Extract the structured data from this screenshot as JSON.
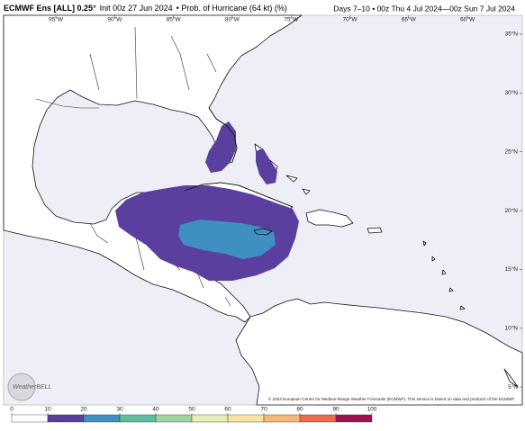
{
  "header": {
    "title": "ECMWF Ens [ALL] 0.25°",
    "init": "Init 00z 27 Jun 2024",
    "product": "• Prob. of Hurricane (64 kt) (%)",
    "valid": "Days 7–10 • 00z Thu 4 Jul 2024—00z Sun 7 Jul 2024"
  },
  "map": {
    "lon_labels": [
      {
        "value": -95,
        "label": "95°W"
      },
      {
        "value": -90,
        "label": "90°W"
      },
      {
        "value": -85,
        "label": "85°W"
      },
      {
        "value": -80,
        "label": "80°W"
      },
      {
        "value": -75,
        "label": "75°W"
      },
      {
        "value": -70,
        "label": "70°W"
      },
      {
        "value": -65,
        "label": "65°W"
      },
      {
        "value": -60,
        "label": "60°W"
      }
    ],
    "lat_labels": [
      {
        "value": 35,
        "label": "35°N"
      },
      {
        "value": 30,
        "label": "30°N"
      },
      {
        "value": 25,
        "label": "25°N"
      },
      {
        "value": 20,
        "label": "20°N"
      },
      {
        "value": 15,
        "label": "15°N"
      },
      {
        "value": 10,
        "label": "10°N"
      },
      {
        "value": 5,
        "label": "5°N"
      }
    ],
    "logo": "WeatherBELL",
    "copyright": "© 2024 European Centre for Medium-Range Weather Forecasts (ECMWF). This service is based on data and products of the ECMWF."
  },
  "colorbar": {
    "ticks": [
      0,
      10,
      20,
      30,
      40,
      50,
      60,
      70,
      80,
      90,
      100
    ],
    "colors": [
      "#ffffff",
      "#5b3f9e",
      "#3f8fc3",
      "#5fbe9d",
      "#9ed59f",
      "#e3efb5",
      "#f6e4a3",
      "#f4b877",
      "#ec6c4e",
      "#9e1253"
    ]
  }
}
